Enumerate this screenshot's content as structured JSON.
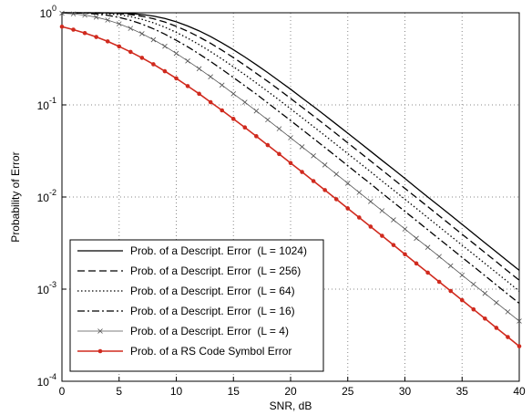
{
  "chart_data": {
    "type": "line",
    "xlabel": "SNR, dB",
    "ylabel": "Probability of Error",
    "x": [
      0,
      1,
      2,
      3,
      4,
      5,
      6,
      7,
      8,
      9,
      10,
      11,
      12,
      13,
      14,
      15,
      16,
      17,
      18,
      19,
      20,
      21,
      22,
      23,
      24,
      25,
      26,
      27,
      28,
      29,
      30,
      31,
      32,
      33,
      34,
      35,
      36,
      37,
      38,
      39,
      40
    ],
    "xlim": [
      0,
      40
    ],
    "xticks": [
      0,
      5,
      10,
      15,
      20,
      25,
      30,
      35,
      40
    ],
    "ylim": [
      0.0001,
      1
    ],
    "yscale": "log",
    "yticks": [
      {
        "value": 1,
        "label": "10^0"
      },
      {
        "value": 0.1,
        "label": "10^-1"
      },
      {
        "value": 0.01,
        "label": "10^-2"
      },
      {
        "value": 0.001,
        "label": "10^-3"
      },
      {
        "value": 0.0001,
        "label": "10^-4"
      }
    ],
    "grid": true,
    "legend": "lower left",
    "series": [
      {
        "name": "Prob. of a Descript. Error  (L = 1024)",
        "color": "#000000",
        "style": "solid",
        "marker": "none",
        "values": [
          1.0,
          1.0,
          1.0,
          0.9997,
          0.9983,
          0.9937,
          0.982,
          0.959,
          0.921,
          0.867,
          0.798,
          0.719,
          0.636,
          0.552,
          0.471,
          0.397,
          0.331,
          0.273,
          0.224,
          0.182,
          0.148,
          0.119,
          0.0961,
          0.0771,
          0.0617,
          0.0493,
          0.0394,
          0.0314,
          0.025,
          0.02,
          0.0159,
          0.0126,
          0.01,
          0.00799,
          0.00635,
          0.00505,
          0.00401,
          0.00318,
          0.00253,
          0.00201,
          0.0016
        ]
      },
      {
        "name": "Prob. of a Descript. Error  (L = 256)",
        "color": "#000000",
        "style": "dashed",
        "marker": "none",
        "values": [
          1.0,
          1.0,
          0.9996,
          0.9981,
          0.9931,
          0.981,
          0.957,
          0.917,
          0.862,
          0.793,
          0.713,
          0.63,
          0.546,
          0.466,
          0.392,
          0.326,
          0.269,
          0.22,
          0.18,
          0.146,
          0.1175,
          0.0945,
          0.0759,
          0.0608,
          0.0486,
          0.0387,
          0.0309,
          0.0246,
          0.0196,
          0.0156,
          0.0124,
          0.00988,
          0.00786,
          0.00625,
          0.00497,
          0.00394,
          0.00314,
          0.00249,
          0.00198,
          0.00157,
          0.00125
        ]
      },
      {
        "name": "Prob. of a Descript. Error  (L = 64)",
        "color": "#000000",
        "style": "dotted",
        "marker": "none",
        "values": [
          0.9999,
          0.9995,
          0.9975,
          0.9914,
          0.977,
          0.95,
          0.908,
          0.85,
          0.778,
          0.698,
          0.613,
          0.53,
          0.451,
          0.379,
          0.315,
          0.259,
          0.213,
          0.173,
          0.14,
          0.113,
          0.0906,
          0.0727,
          0.0581,
          0.0465,
          0.0371,
          0.0296,
          0.0236,
          0.0188,
          0.0149,
          0.0119,
          0.00946,
          0.00752,
          0.00597,
          0.00475,
          0.00377,
          0.003,
          0.00239,
          0.0019,
          0.00151,
          0.0012,
          0.00095
        ]
      },
      {
        "name": "Prob. of a Descript. Error  (L = 16)",
        "color": "#000000",
        "style": "dashdot",
        "marker": "none",
        "values": [
          0.9991,
          0.9962,
          0.988,
          0.97,
          0.939,
          0.89,
          0.828,
          0.753,
          0.67,
          0.586,
          0.503,
          0.427,
          0.357,
          0.296,
          0.243,
          0.198,
          0.161,
          0.131,
          0.105,
          0.0843,
          0.0676,
          0.0541,
          0.0432,
          0.0345,
          0.0275,
          0.0219,
          0.0174,
          0.0139,
          0.011,
          0.00877,
          0.00698,
          0.00555,
          0.00441,
          0.0035,
          0.00279,
          0.00221,
          0.00176,
          0.0014,
          0.00111,
          0.000881,
          0.0007
        ]
      },
      {
        "name": "Prob. of a Descript. Error  (L = 4)",
        "color": "#555555",
        "style": "thin",
        "marker": "x",
        "values": [
          0.989,
          0.972,
          0.942,
          0.896,
          0.833,
          0.758,
          0.677,
          0.593,
          0.51,
          0.433,
          0.362,
          0.3,
          0.247,
          0.202,
          0.164,
          0.132,
          0.107,
          0.0859,
          0.0688,
          0.0551,
          0.044,
          0.0351,
          0.028,
          0.0223,
          0.0177,
          0.0141,
          0.0112,
          0.00894,
          0.0071,
          0.00565,
          0.00449,
          0.00356,
          0.00284,
          0.00226,
          0.00179,
          0.00142,
          0.00113,
          0.000898,
          0.000713,
          0.000567,
          0.00045
        ]
      },
      {
        "name": "Prob. of a RS Code Symbol Error",
        "color": "#d02a1e",
        "style": "solid",
        "marker": "o",
        "values": [
          0.706,
          0.656,
          0.602,
          0.546,
          0.489,
          0.431,
          0.376,
          0.324,
          0.276,
          0.232,
          0.194,
          0.16,
          0.132,
          0.107,
          0.0872,
          0.0705,
          0.0569,
          0.0457,
          0.0366,
          0.0293,
          0.0234,
          0.0187,
          0.0149,
          0.0119,
          0.00946,
          0.00753,
          0.00599,
          0.00477,
          0.00379,
          0.00301,
          0.00239,
          0.0019,
          0.00151,
          0.0012,
          0.000955,
          0.000759,
          0.000603,
          0.000479,
          0.00038,
          0.000302,
          0.00024
        ]
      }
    ]
  }
}
